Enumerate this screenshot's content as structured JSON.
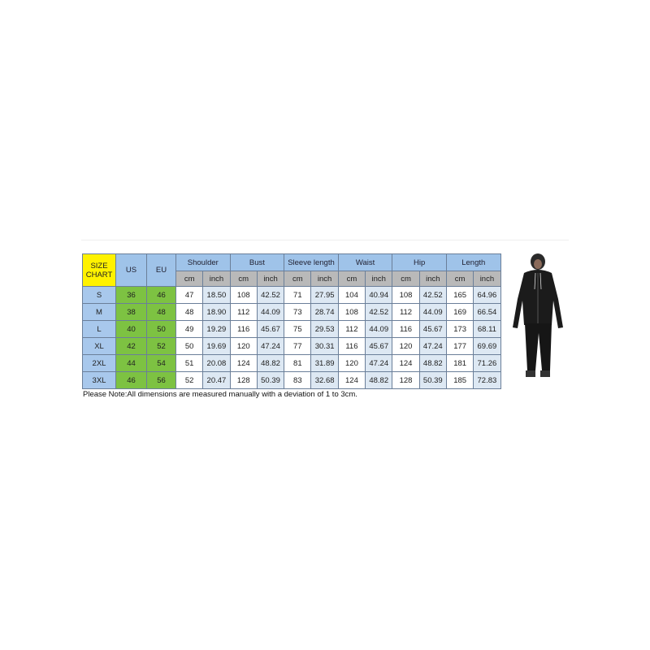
{
  "size_chart_label": "SIZE CHART",
  "columns": {
    "us": "US",
    "eu": "EU"
  },
  "measurements": [
    "Shoulder",
    "Bust",
    "Sleeve length",
    "Waist",
    "Hip",
    "Length"
  ],
  "units": {
    "cm": "cm",
    "inch": "inch"
  },
  "rows": [
    {
      "size": "S",
      "us": "36",
      "eu": "46",
      "values": [
        "47",
        "18.50",
        "108",
        "42.52",
        "71",
        "27.95",
        "104",
        "40.94",
        "108",
        "42.52",
        "165",
        "64.96"
      ]
    },
    {
      "size": "M",
      "us": "38",
      "eu": "48",
      "values": [
        "48",
        "18.90",
        "112",
        "44.09",
        "73",
        "28.74",
        "108",
        "42.52",
        "112",
        "44.09",
        "169",
        "66.54"
      ]
    },
    {
      "size": "L",
      "us": "40",
      "eu": "50",
      "values": [
        "49",
        "19.29",
        "116",
        "45.67",
        "75",
        "29.53",
        "112",
        "44.09",
        "116",
        "45.67",
        "173",
        "68.11"
      ]
    },
    {
      "size": "XL",
      "us": "42",
      "eu": "52",
      "values": [
        "50",
        "19.69",
        "120",
        "47.24",
        "77",
        "30.31",
        "116",
        "45.67",
        "120",
        "47.24",
        "177",
        "69.69"
      ]
    },
    {
      "size": "2XL",
      "us": "44",
      "eu": "54",
      "values": [
        "51",
        "20.08",
        "124",
        "48.82",
        "81",
        "31.89",
        "120",
        "47.24",
        "124",
        "48.82",
        "181",
        "71.26"
      ]
    },
    {
      "size": "3XL",
      "us": "46",
      "eu": "56",
      "values": [
        "52",
        "20.47",
        "128",
        "50.39",
        "83",
        "32.68",
        "124",
        "48.82",
        "128",
        "50.39",
        "185",
        "72.83"
      ]
    }
  ],
  "note": "Please Note:All dimensions are measured manually with a deviation of 1 to 3cm.",
  "colors": {
    "size_label": "#fff200",
    "header": "#9fc3e9",
    "unit_row": "#b9b9b9",
    "us_eu": "#7dc242",
    "inch": "#dde8f3"
  }
}
